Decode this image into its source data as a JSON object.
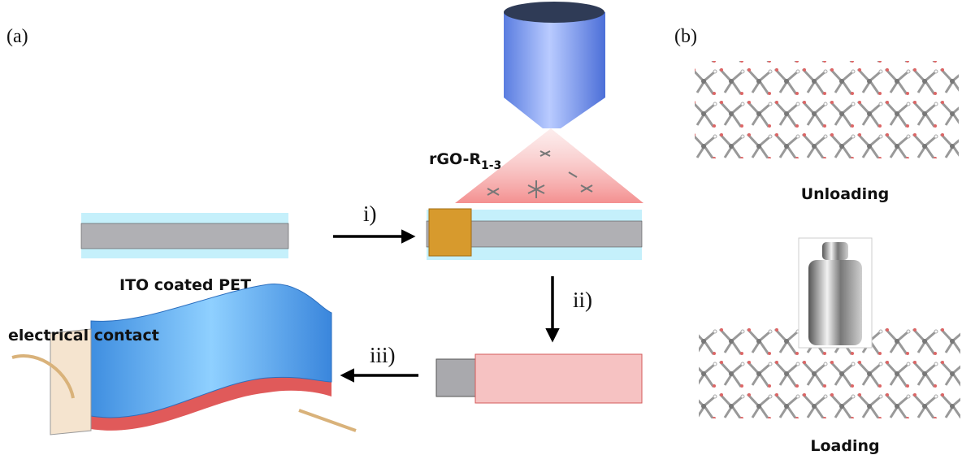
{
  "panels": {
    "a": "(a)",
    "b": "(b)"
  },
  "ink_label": {
    "main": "rGO-R",
    "subscript": "1-3"
  },
  "steps": [
    "i)",
    "ii)",
    "iii)"
  ],
  "substrate_label": "ITO coated PET",
  "contact_label": "electrical contact",
  "states": {
    "unloading": "Unloading",
    "loading": "Loading"
  }
}
